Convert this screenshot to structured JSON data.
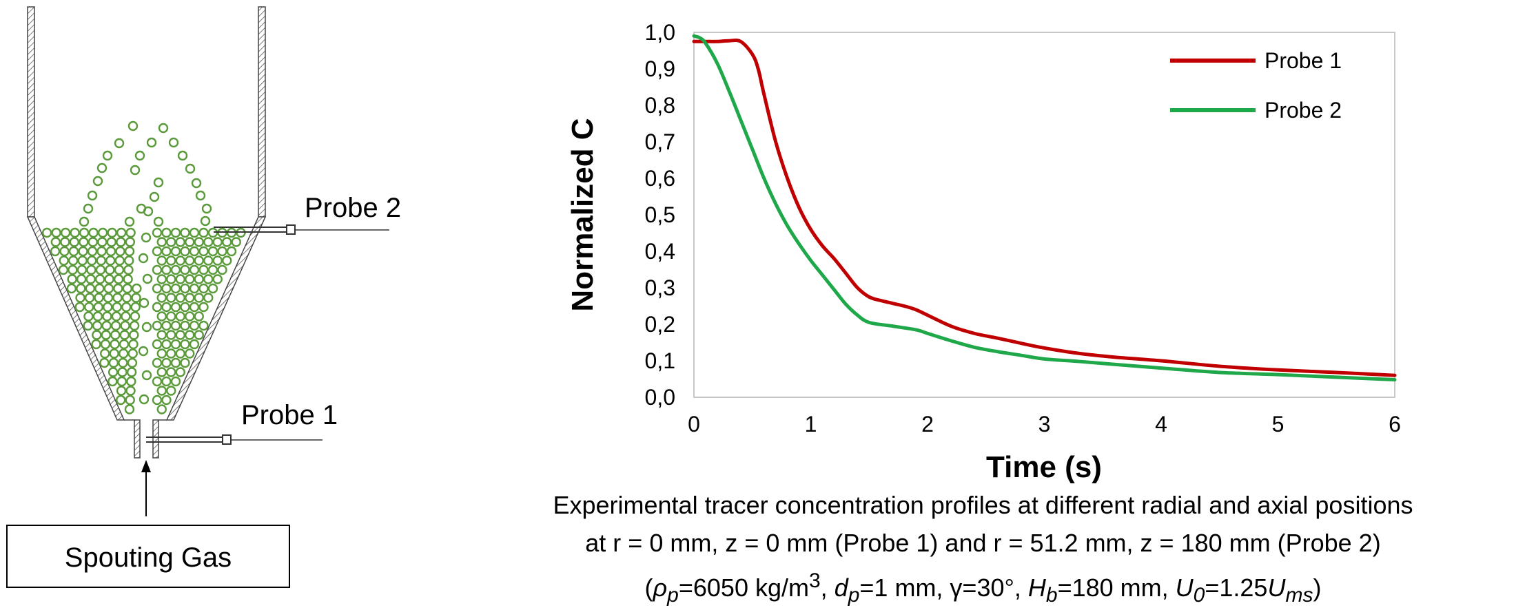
{
  "diagram": {
    "probe2_label": "Probe 2",
    "probe1_label": "Probe 1",
    "gas_label": "Spouting Gas",
    "particle_color": "#5a9a3a"
  },
  "chart_data": {
    "type": "line",
    "title": "",
    "xlabel": "Time (s)",
    "ylabel": "Normalized C",
    "xlim": [
      0,
      6
    ],
    "ylim": [
      0,
      1.0
    ],
    "x_ticks": [
      "0",
      "1",
      "2",
      "3",
      "4",
      "5",
      "6"
    ],
    "y_ticks": [
      "0,0",
      "0,1",
      "0,2",
      "0,3",
      "0,4",
      "0,5",
      "0,6",
      "0,7",
      "0,8",
      "0,9",
      "1,0"
    ],
    "grid": false,
    "legend_position": "top-right",
    "series": [
      {
        "name": "Probe 1",
        "color": "#c00000",
        "x": [
          0,
          0.1,
          0.2,
          0.3,
          0.4,
          0.5,
          0.55,
          0.6,
          0.7,
          0.8,
          0.9,
          1.0,
          1.1,
          1.2,
          1.3,
          1.4,
          1.5,
          1.6,
          1.8,
          1.9,
          2.0,
          2.2,
          2.4,
          2.6,
          2.8,
          3.0,
          3.3,
          3.6,
          4.0,
          4.5,
          5.0,
          5.5,
          6.0
        ],
        "y": [
          0.975,
          0.975,
          0.975,
          0.977,
          0.975,
          0.94,
          0.9,
          0.83,
          0.7,
          0.6,
          0.52,
          0.46,
          0.415,
          0.38,
          0.34,
          0.3,
          0.275,
          0.265,
          0.25,
          0.24,
          0.225,
          0.195,
          0.175,
          0.162,
          0.148,
          0.135,
          0.12,
          0.11,
          0.1,
          0.085,
          0.075,
          0.068,
          0.06
        ]
      },
      {
        "name": "Probe 2",
        "color": "#1fa84a",
        "x": [
          0,
          0.05,
          0.1,
          0.2,
          0.3,
          0.4,
          0.5,
          0.6,
          0.7,
          0.8,
          0.9,
          1.0,
          1.1,
          1.2,
          1.3,
          1.4,
          1.5,
          1.7,
          1.9,
          2.0,
          2.2,
          2.4,
          2.6,
          2.8,
          3.0,
          3.3,
          3.6,
          4.0,
          4.5,
          5.0,
          5.5,
          6.0
        ],
        "y": [
          0.99,
          0.985,
          0.97,
          0.915,
          0.84,
          0.76,
          0.68,
          0.6,
          0.53,
          0.47,
          0.42,
          0.375,
          0.335,
          0.295,
          0.255,
          0.225,
          0.205,
          0.195,
          0.185,
          0.175,
          0.155,
          0.137,
          0.125,
          0.115,
          0.105,
          0.098,
          0.09,
          0.08,
          0.068,
          0.062,
          0.055,
          0.048
        ]
      }
    ]
  },
  "caption": {
    "line1": "Experimental tracer concentration profiles at different radial and axial positions",
    "line2": "at r = 0 mm, z = 0 mm (Probe 1) and r = 51.2 mm, z = 180 mm (Probe 2)",
    "open_paren": "(",
    "rho": "ρ",
    "rho_sub": "p",
    "rho_val": "=6050 kg/m",
    "rho_sup": "3",
    "sep1": ", ",
    "d": "d",
    "d_sub": "p",
    "d_val": "=1 mm, γ=30°, ",
    "h": "H",
    "h_sub": "b",
    "h_val": "=180 mm, ",
    "u0": "U",
    "u0_sub": "0",
    "u_eq": "=1.25",
    "ums": "U",
    "ums_sub": "ms",
    "close_paren": ")"
  }
}
